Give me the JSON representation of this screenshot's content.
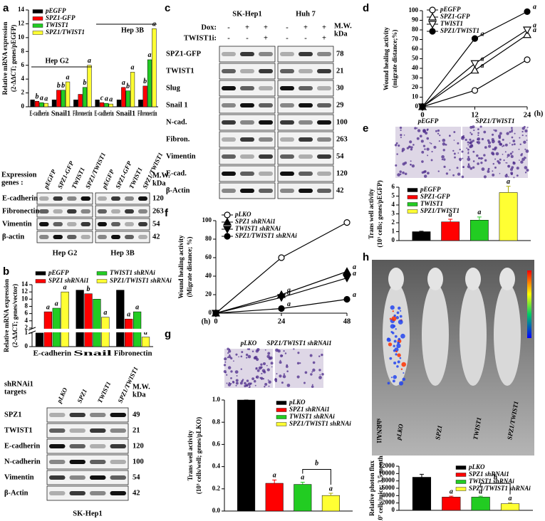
{
  "panel_labels": [
    "a",
    "b",
    "c",
    "d",
    "e",
    "f",
    "g",
    "h"
  ],
  "chart_data": [
    {
      "type": "bar",
      "y_label": [
        "Relative mRNA expression",
        "(2-ΔΔCT; genes/pEGFP)"
      ],
      "categories": [
        "E-cadherin",
        "Snail1",
        "Fibronectin",
        "E-cadherin",
        "Snail1",
        "Fibronectin"
      ],
      "group_labels": [
        "Hep G2",
        "Hep 3B"
      ],
      "ylim": [
        0,
        14
      ],
      "yticks": [
        0,
        2,
        4,
        6,
        8,
        10,
        12,
        14
      ],
      "legend": "top-left",
      "series": [
        {
          "name": "pEGFP",
          "color": "#000000",
          "values": [
            1,
            1,
            1,
            1,
            1,
            1
          ]
        },
        {
          "name": "SPZ1-GFP",
          "color": "#ff0000",
          "values": [
            0.8,
            2.4,
            1.8,
            0.6,
            2.8,
            3.0
          ],
          "sig": [
            "b",
            "b",
            null,
            "c",
            "a",
            "b"
          ]
        },
        {
          "name": "TWIST1",
          "color": "#22cc22",
          "values": [
            0.6,
            2.4,
            2.8,
            0.5,
            2.3,
            6.8
          ],
          "sig": [
            "a",
            "b",
            "b",
            "a",
            "b",
            "a"
          ]
        },
        {
          "name": "SPZ1/TWIST1",
          "color": "#ffff33",
          "values": [
            0.5,
            3.6,
            6.0,
            0.4,
            5.0,
            11.3
          ],
          "sig": [
            "a",
            "a",
            "a",
            "a",
            "a",
            "a"
          ]
        }
      ]
    },
    {
      "type": "bar",
      "y_label": [
        "Relative mRNA expression",
        "(2-ΔΔCT; genes/vector)"
      ],
      "categories": [
        "E-cadherin",
        "Snail",
        "Fibronectin"
      ],
      "ylim": [
        0,
        14
      ],
      "ybreak": [
        1,
        2
      ],
      "yticks": [
        0,
        1,
        2,
        4,
        6,
        8,
        10,
        12,
        14
      ],
      "legend": "above",
      "series": [
        {
          "name": "pEGFP",
          "color": "#000000",
          "values": [
            1,
            12.5,
            12.5
          ]
        },
        {
          "name": "SPZ1 shRNAi1",
          "color": "#ff0000",
          "values": [
            6.5,
            11.5,
            4.5
          ],
          "sig": [
            "a",
            "b",
            "a"
          ]
        },
        {
          "name": "TWIST1 shRNAi",
          "color": "#22cc22",
          "values": [
            7.5,
            10,
            6.5
          ],
          "sig": [
            "a",
            null,
            "a"
          ]
        },
        {
          "name": "SPZ1/TWIST1 shRNAi",
          "color": "#ffff33",
          "values": [
            12,
            5,
            0.7
          ],
          "sig": [
            "a",
            "a",
            "a"
          ]
        }
      ]
    },
    {
      "type": "line",
      "y_label": [
        "Wound healing activity",
        "(migrate distance;%)"
      ],
      "x": [
        0,
        12,
        24
      ],
      "xlim": [
        0,
        24
      ],
      "xticks": [
        0,
        12,
        24
      ],
      "x_unit": "(h)",
      "ylim": [
        0,
        100
      ],
      "yticks": [
        0,
        10,
        20,
        30,
        40,
        50,
        60,
        70,
        80,
        90,
        100
      ],
      "legend": "top-left",
      "series": [
        {
          "name": "pEGFP",
          "color": "#000000",
          "marker": "circle-open",
          "values": [
            0,
            17,
            49
          ]
        },
        {
          "name": "SPZ1-GFP",
          "color": "#000000",
          "marker": "triangle-up-open",
          "values": [
            0,
            38,
            75
          ],
          "sig": [
            null,
            "a",
            "a"
          ]
        },
        {
          "name": "TWIST1",
          "color": "#000000",
          "marker": "triangle-down-open",
          "values": [
            0,
            45,
            80
          ],
          "sig": [
            null,
            "a",
            "a"
          ]
        },
        {
          "name": "SPZ1/TWIST1",
          "color": "#000000",
          "marker": "circle",
          "values": [
            0,
            71,
            99
          ],
          "sig": [
            null,
            "a",
            "a"
          ]
        }
      ]
    },
    {
      "type": "bar",
      "y_label": [
        "Trans well activity",
        "(10³ cells; genes/pEGFP)"
      ],
      "ylim": [
        0,
        6
      ],
      "yticks": [
        0,
        1,
        2,
        3,
        4,
        5,
        6
      ],
      "legend": "top-left",
      "series": [
        {
          "name": "pEGFP",
          "color": "#000000",
          "values": [
            1
          ],
          "errors": [
            0.05
          ]
        },
        {
          "name": "SPZ1-GFP",
          "color": "#ff0000",
          "values": [
            2.1
          ],
          "errors": [
            0.3
          ],
          "sig": [
            "a"
          ]
        },
        {
          "name": "TWIST1",
          "color": "#22cc22",
          "values": [
            2.3
          ],
          "errors": [
            0.35
          ],
          "sig": [
            "a"
          ]
        },
        {
          "name": "SPZ1/TWIST1",
          "color": "#ffff33",
          "values": [
            5.4
          ],
          "errors": [
            0.7
          ],
          "sig": [
            "a"
          ]
        }
      ]
    },
    {
      "type": "line",
      "y_label": [
        "Wound healing activity",
        "(Migrate distance; %)"
      ],
      "x": [
        0,
        24,
        48
      ],
      "xlim": [
        0,
        48
      ],
      "xticks": [
        0,
        24,
        48
      ],
      "x_unit": "(h)",
      "ylim": [
        0,
        100
      ],
      "yticks": [
        0,
        20,
        40,
        60,
        80,
        100
      ],
      "legend": "top-left",
      "series": [
        {
          "name": "pLKO",
          "color": "#000000",
          "marker": "circle-open",
          "values": [
            0,
            60,
            98
          ]
        },
        {
          "name": "SPZ1 shRNAi1",
          "color": "#000000",
          "marker": "triangle-up",
          "values": [
            0,
            20,
            45
          ],
          "sig": [
            null,
            "a",
            "a"
          ]
        },
        {
          "name": "TWIST1 shRNAi",
          "color": "#000000",
          "marker": "triangle-down",
          "values": [
            0,
            17,
            38
          ],
          "sig": [
            null,
            "a",
            "a"
          ]
        },
        {
          "name": "SPZ1/TWIST1 shRNAi",
          "color": "#000000",
          "marker": "circle",
          "values": [
            0,
            5,
            15
          ],
          "sig": [
            null,
            "a",
            "a"
          ]
        }
      ]
    },
    {
      "type": "bar",
      "y_label": [
        "Trans well activity",
        "(10³ cells/well; genes/pLKO)"
      ],
      "ylim": [
        0,
        1
      ],
      "yticks": [
        {
          "value": 0,
          "label": "0.0"
        },
        {
          "value": 0.2,
          "label": "0.2"
        },
        {
          "value": 0.4,
          "label": "0.4"
        },
        {
          "value": 0.6,
          "label": "0.6"
        },
        {
          "value": 0.8,
          "label": "0.8"
        },
        {
          "value": 1,
          "label": "1.0"
        }
      ],
      "legend": "top-right",
      "bracket_label": "b",
      "series": [
        {
          "name": "pLKO",
          "color": "#000000",
          "values": [
            1.0
          ],
          "errors": [
            0
          ]
        },
        {
          "name": "SPZ1 shRNAi1",
          "color": "#ff0000",
          "values": [
            0.25
          ],
          "errors": [
            0.03
          ],
          "sig": [
            "a"
          ]
        },
        {
          "name": "TWIST1 shRNAi",
          "color": "#22cc22",
          "values": [
            0.24
          ],
          "errors": [
            0.02
          ],
          "sig": [
            "a"
          ]
        },
        {
          "name": "SPZ1/TWIST1 shRNAi",
          "color": "#ffff33",
          "values": [
            0.14
          ],
          "errors": [
            0.02
          ],
          "sig": [
            "a"
          ]
        }
      ]
    },
    {
      "type": "bar",
      "y_label": [
        "Relative photon flux",
        "(10⁷ cells/mice; 3.5 months)"
      ],
      "ylim": [
        0,
        12000
      ],
      "yticks": [
        0,
        2000,
        4000,
        6000,
        8000,
        10000,
        12000
      ],
      "legend": "top-right",
      "bracket_label": "b",
      "series": [
        {
          "name": "pLKO",
          "color": "#000000",
          "values": [
            9000
          ],
          "errors": [
            800
          ]
        },
        {
          "name": "SPZ1 shRNAi1",
          "color": "#ff0000",
          "values": [
            3600
          ],
          "errors": [
            250
          ],
          "sig": [
            "a"
          ]
        },
        {
          "name": "TWIST1 shRNAi",
          "color": "#22cc22",
          "values": [
            3600
          ],
          "errors": [
            250
          ],
          "sig": [
            "a"
          ]
        },
        {
          "name": "SPZ1/TWIST1 shRNAi",
          "color": "#ffff33",
          "values": [
            1800
          ],
          "errors": [
            200
          ],
          "sig": [
            "a"
          ]
        }
      ]
    }
  ],
  "blots": [
    {
      "header": [
        "Expression",
        "genes :"
      ],
      "mw_header": [
        "M.W.",
        "kDa"
      ],
      "groups": [
        {
          "cell": "Hep G2",
          "lanes": [
            "pEGFP",
            "SPZ1-GFP",
            "TWIST1",
            "SPZ1/TWIST1"
          ]
        },
        {
          "cell": "Hep 3B",
          "lanes": [
            "pEGFP",
            "SPZ1-GFP",
            "TWIST1",
            "SPZ1/TWIST1"
          ]
        }
      ],
      "rows": [
        {
          "name": "E-cadherin",
          "mw": 120
        },
        {
          "name": "Fibronectin",
          "mw": 263
        },
        {
          "name": "Vimentin",
          "mw": 54
        },
        {
          "name": "β-actin",
          "mw": 42
        }
      ]
    },
    {
      "header": [
        "shRNAi1",
        "targets"
      ],
      "mw_header": [
        "M.W.",
        "kDa"
      ],
      "groups": [
        {
          "cell": "SK-Hep1",
          "lanes": [
            "pLKO",
            "SPZ1",
            "TWIST1",
            "SPZ1/TWIST1"
          ]
        }
      ],
      "rows": [
        {
          "name": "SPZ1",
          "mw": 49
        },
        {
          "name": "TWIST1",
          "mw": 21
        },
        {
          "name": "E-cadherin",
          "mw": 120
        },
        {
          "name": "N-cadherin",
          "mw": 100
        },
        {
          "name": "Vimentin",
          "mw": 54
        },
        {
          "name": "β-Actin",
          "mw": 42
        }
      ]
    },
    {
      "condition_names": [
        "Dox:",
        "TWIST1i:"
      ],
      "mw_header": [
        "M.W.",
        "kDa"
      ],
      "groups": [
        {
          "cell": "SK-Hep1",
          "conditions": [
            [
              "-",
              "+",
              "+"
            ],
            [
              "-",
              "-",
              "+"
            ]
          ]
        },
        {
          "cell": "Huh 7",
          "conditions": [
            [
              "-",
              "+",
              "+"
            ],
            [
              "-",
              "-",
              "+"
            ]
          ]
        }
      ],
      "rows": [
        {
          "name": "SPZ1-GFP",
          "mw": 78
        },
        {
          "name": "TWIST1",
          "mw": 21
        },
        {
          "name": "Slug",
          "mw": 30
        },
        {
          "name": "Snail 1",
          "mw": 29
        },
        {
          "name": "N-cad.",
          "mw": 100
        },
        {
          "name": "Fibron.",
          "mw": 263
        },
        {
          "name": "Vimentin",
          "mw": 54
        },
        {
          "name": "E-cad.",
          "mw": 120
        },
        {
          "name": "β-Actin",
          "mw": 42
        }
      ]
    }
  ],
  "micrographs": [
    [
      "pEGFP",
      "SPZ1/TWIST1"
    ],
    [
      "pLKO",
      "SPZ1/TWIST1 shRNAi1"
    ]
  ],
  "mice": {
    "labels": [
      "pLKO",
      "SPZ1",
      "TWIST1",
      "SPZ1/TWIST1"
    ],
    "side_label": "shRNAi1"
  }
}
